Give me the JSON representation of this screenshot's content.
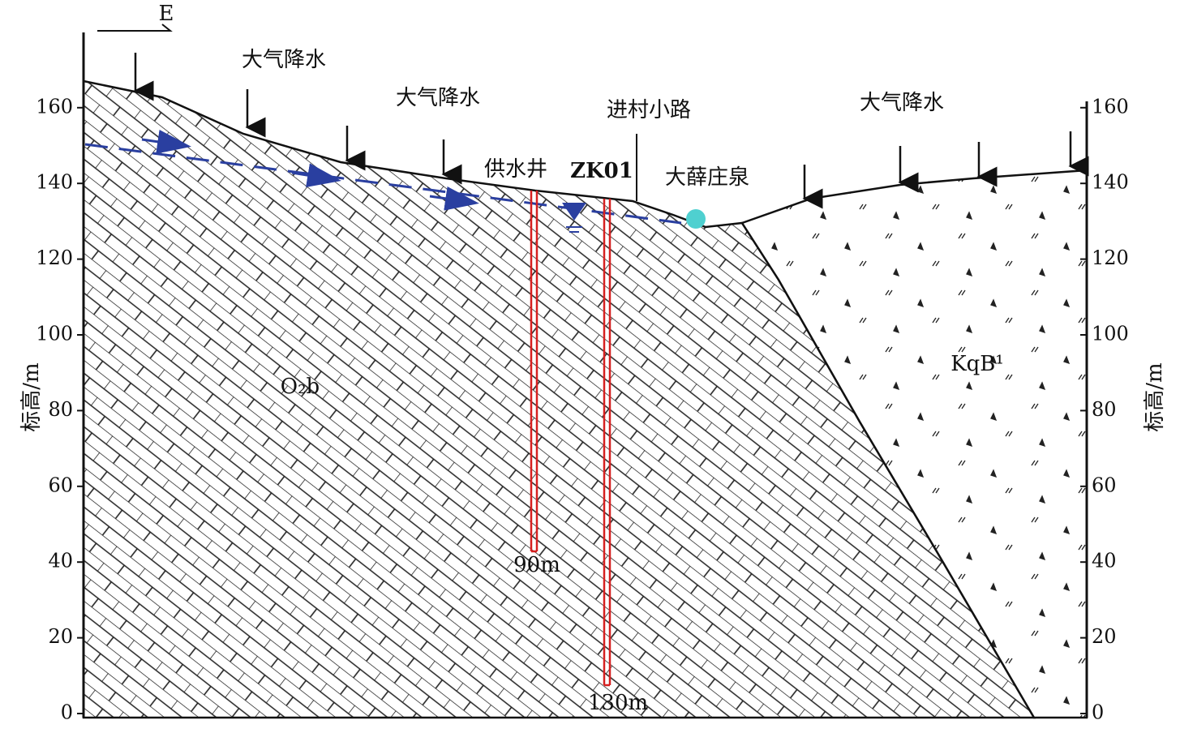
{
  "direction": "E",
  "left_axis": {
    "label": "标高/m",
    "ticks": [
      0,
      20,
      40,
      60,
      80,
      100,
      120,
      140,
      160
    ]
  },
  "right_axis": {
    "label": "标高/m",
    "ticks": [
      0,
      20,
      40,
      60,
      80,
      100,
      120,
      140,
      160
    ]
  },
  "labels": {
    "precipitation": [
      "大气降水",
      "大气降水",
      "大气降水"
    ],
    "road": "进村小路",
    "supply_well": "供水井",
    "borehole": "ZK01",
    "spring": "大薛庄泉",
    "formation_left": "O₂b",
    "formation_right": "KqB¹",
    "supply_well_depth": "90m",
    "borehole_depth": "130m"
  }
}
